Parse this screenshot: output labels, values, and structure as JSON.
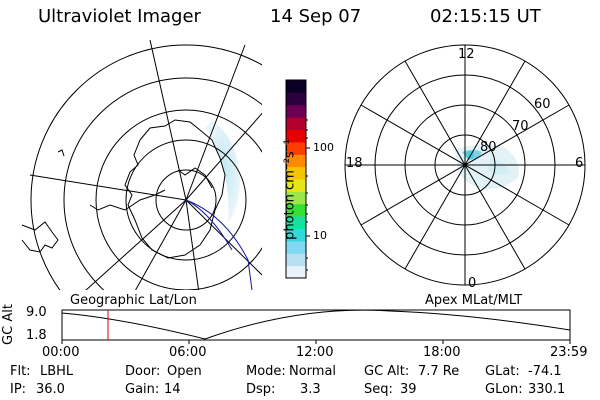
{
  "header": {
    "instrument": "Ultraviolet Imager",
    "date": "14 Sep 07",
    "time": "02:15:15 UT"
  },
  "colorbar": {
    "unit_label": "photon cm⁻²s⁻¹",
    "ticks": [
      "100",
      "10"
    ],
    "colors": [
      "#e8f2f8",
      "#b8dff0",
      "#7fd8ef",
      "#33d8d8",
      "#19e0a0",
      "#33e033",
      "#9ce64a",
      "#e6e619",
      "#f5c400",
      "#ff8a00",
      "#ff3b00",
      "#e60000",
      "#b3002d",
      "#6b0055",
      "#2a003f",
      "#0a0026"
    ]
  },
  "polar_labels": {
    "mlt_top": "12",
    "mlt_left": "18",
    "mlt_right": "6",
    "mlt_bottom": "0",
    "lat_60": "60",
    "lat_70": "70",
    "lat_80": "80"
  },
  "map_titles": {
    "left": "Geographic Lat/Lon",
    "right": "Apex MLat/MLT"
  },
  "altitude_plot": {
    "ylabel": "GC Alt",
    "ymax": "9.0",
    "ymin": "1.8",
    "xticks": [
      "00:00",
      "06:00",
      "12:00",
      "18:00",
      "23:59"
    ],
    "marker_time": "02:15"
  },
  "info": {
    "flt_label": "Flt:",
    "flt_value": "LBHL",
    "ip_label": "IP:",
    "ip_value": "36.0",
    "door_label": "Door:",
    "door_value": "Open",
    "gain_label": "Gain:",
    "gain_value": "14",
    "mode_label": "Mode:",
    "mode_value": "Normal",
    "dsp_label": "Dsp:",
    "dsp_value": "3.3",
    "gcalt_label": "GC Alt:",
    "gcalt_value": "7.7 Re",
    "seq_label": "Seq:",
    "seq_value": "39",
    "glat_label": "GLat:",
    "glat_value": "-74.1",
    "glon_label": "GLon:",
    "glon_value": "330.1"
  }
}
